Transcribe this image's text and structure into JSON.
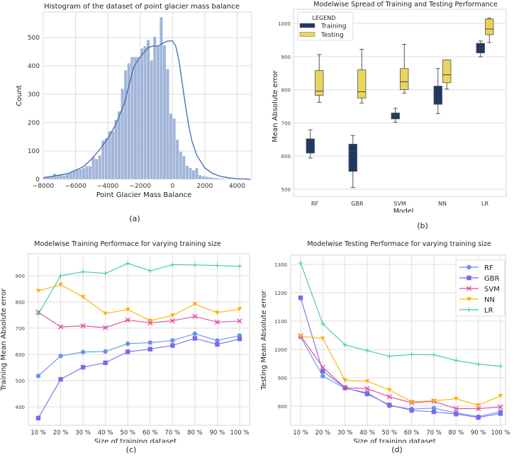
{
  "chart_data": [
    {
      "id": "a",
      "type": "bar",
      "subtype": "histogram-with-kde",
      "title": "Histogram of the dataset of point glacier mass balance",
      "xlabel": "Point Glacier Mass Balance",
      "ylabel": "Count",
      "caption": "(a)",
      "xlim": [
        -8000,
        4900
      ],
      "ylim": [
        0,
        590
      ],
      "xticks": [
        -8000,
        -6000,
        -4000,
        -2000,
        0,
        2000,
        4000
      ],
      "xtick_labels": [
        "−8000",
        "−6000",
        "−4000",
        "−2000",
        "0",
        "2000",
        "4000"
      ],
      "yticks": [
        0,
        100,
        200,
        300,
        400,
        500
      ],
      "ytick_labels": [
        "0",
        "100",
        "200",
        "300",
        "400",
        "500"
      ],
      "bin_start": -8000,
      "bin_width": 200,
      "values": [
        8,
        10,
        12,
        20,
        15,
        15,
        14,
        20,
        25,
        32,
        34,
        36,
        40,
        47,
        47,
        78,
        72,
        85,
        137,
        145,
        170,
        170,
        210,
        240,
        320,
        385,
        410,
        432,
        432,
        432,
        462,
        470,
        492,
        420,
        503,
        470,
        572,
        473,
        390,
        232,
        215,
        140,
        98,
        82,
        48,
        40,
        32,
        40,
        15,
        12,
        10,
        8,
        6,
        5,
        4,
        3,
        2,
        2,
        1,
        1,
        1,
        1,
        1,
        0
      ],
      "kde_x": [
        -8000,
        -7500,
        -7000,
        -6500,
        -6000,
        -5500,
        -5000,
        -4500,
        -4000,
        -3500,
        -3000,
        -2700,
        -2400,
        -2100,
        -1800,
        -1500,
        -1200,
        -900,
        -600,
        -300,
        0,
        200,
        400,
        600,
        800,
        1000,
        1200,
        1500,
        2000,
        2500,
        3000,
        3500,
        4000,
        4500,
        4800
      ],
      "kde_y": [
        6,
        10,
        15,
        20,
        32,
        45,
        72,
        105,
        145,
        195,
        265,
        330,
        395,
        425,
        445,
        465,
        470,
        470,
        480,
        488,
        488,
        470,
        420,
        340,
        260,
        190,
        135,
        85,
        40,
        20,
        10,
        5,
        2,
        1,
        0
      ],
      "grid": true,
      "colors": {
        "bar": "#9db1d7",
        "kde": "#4c72b0"
      }
    },
    {
      "id": "b",
      "type": "box",
      "title": "Modelwise Spread  of Training and Testing Performance",
      "xlabel": "Model",
      "ylabel": "Mean Absolute error",
      "caption": "(b)",
      "categories": [
        "RF",
        "GBR",
        "SVM",
        "NN",
        "LR"
      ],
      "ylim": [
        480,
        1030
      ],
      "yticks": [
        500,
        600,
        700,
        800,
        900,
        1000
      ],
      "ytick_labels": [
        "500",
        "600",
        "700",
        "800",
        "900",
        "1000"
      ],
      "legend": {
        "title": "LEGEND",
        "position": "top-left"
      },
      "series": [
        {
          "name": "Training",
          "color": "#1f3864",
          "boxes": [
            {
              "min": 594,
              "q1": 609,
              "median": 643,
              "q3": 652,
              "max": 679
            },
            {
              "min": 505,
              "q1": 554,
              "median": 615,
              "q3": 636,
              "max": 662
            },
            {
              "min": 702,
              "q1": 712,
              "median": 723,
              "q3": 730,
              "max": 744
            },
            {
              "min": 728,
              "q1": 756,
              "median": 772,
              "q3": 811,
              "max": 864
            },
            {
              "min": 899,
              "q1": 911,
              "median": 926,
              "q3": 940,
              "max": 947
            }
          ]
        },
        {
          "name": "Testing",
          "color": "#e8d55a",
          "boxes": [
            {
              "min": 762,
              "q1": 783,
              "median": 796,
              "q3": 858,
              "max": 906
            },
            {
              "min": 760,
              "q1": 775,
              "median": 794,
              "q3": 860,
              "max": 922
            },
            {
              "min": 790,
              "q1": 800,
              "median": 824,
              "q3": 864,
              "max": 937
            },
            {
              "min": 802,
              "q1": 821,
              "median": 845,
              "q3": 890,
              "max": 890
            },
            {
              "min": 942,
              "q1": 966,
              "median": 983,
              "q3": 1013,
              "max": 1016
            }
          ]
        }
      ],
      "grid": true
    },
    {
      "id": "c",
      "type": "line",
      "title": "Modelwise Training Performace  for varying training size",
      "xlabel": "Size of training dataset",
      "ylabel": "Training Mean Absolute error",
      "caption": "(c)",
      "categories": [
        "10 %",
        "20 %",
        "30 %",
        "40 %",
        "50 %",
        "60 %",
        "70 %",
        "80 %",
        "90 %",
        "100 %"
      ],
      "ylim": [
        330,
        975
      ],
      "yticks": [
        400,
        500,
        600,
        700,
        800,
        900
      ],
      "ytick_labels": [
        "400",
        "500",
        "600",
        "700",
        "800",
        "900"
      ],
      "series": [
        {
          "name": "RF",
          "color": "#6495ed",
          "marker": "circle",
          "values": [
            518,
            594,
            609,
            611,
            641,
            645,
            653,
            679,
            653,
            672
          ]
        },
        {
          "name": "GBR",
          "color": "#7b68ee",
          "marker": "square",
          "values": [
            357,
            505,
            551,
            568,
            610,
            620,
            634,
            661,
            638,
            659
          ]
        },
        {
          "name": "SVM",
          "color": "#e0479e",
          "marker": "x",
          "values": [
            761,
            705,
            709,
            702,
            731,
            720,
            728,
            745,
            723,
            727
          ]
        },
        {
          "name": "NN",
          "color": "#ffb000",
          "marker": "triangle-down",
          "values": [
            842,
            866,
            819,
            756,
            771,
            729,
            748,
            792,
            759,
            773
          ]
        },
        {
          "name": "LR",
          "color": "#3cc99a",
          "marker": "plus",
          "values": [
            753,
            900,
            915,
            909,
            947,
            919,
            942,
            941,
            939,
            936
          ]
        }
      ],
      "grid": true
    },
    {
      "id": "d",
      "type": "line",
      "title": "Modelwise Testing Performace  for varying training size",
      "xlabel": "Size of training dataset",
      "ylabel": "Testing Mean Absolute error",
      "caption": "(d)",
      "categories": [
        "10 %",
        "20 %",
        "30 %",
        "40 %",
        "50 %",
        "60 %",
        "70 %",
        "80 %",
        "90 %",
        "100 %"
      ],
      "ylim": [
        735,
        1330
      ],
      "yticks": [
        800,
        900,
        1000,
        1100,
        1200,
        1300
      ],
      "ytick_labels": [
        "800",
        "900",
        "1000",
        "1100",
        "1200",
        "1300"
      ],
      "legend": {
        "position": "top-right"
      },
      "series": [
        {
          "name": "RF",
          "color": "#6495ed",
          "marker": "circle",
          "values": [
            1044,
            906,
            863,
            847,
            801,
            790,
            793,
            776,
            763,
            781
          ]
        },
        {
          "name": "GBR",
          "color": "#7b68ee",
          "marker": "square",
          "values": [
            1182,
            923,
            865,
            843,
            804,
            785,
            780,
            772,
            760,
            774
          ]
        },
        {
          "name": "SVM",
          "color": "#e0479e",
          "marker": "x",
          "values": [
            1048,
            937,
            865,
            862,
            833,
            812,
            817,
            791,
            791,
            797
          ]
        },
        {
          "name": "NN",
          "color": "#ffb000",
          "marker": "triangle-down",
          "values": [
            1046,
            1039,
            891,
            888,
            857,
            815,
            819,
            826,
            803,
            836
          ]
        },
        {
          "name": "LR",
          "color": "#3cc99a",
          "marker": "plus",
          "values": [
            1305,
            1090,
            1016,
            996,
            976,
            982,
            981,
            961,
            948,
            941
          ]
        }
      ],
      "grid": true
    }
  ]
}
